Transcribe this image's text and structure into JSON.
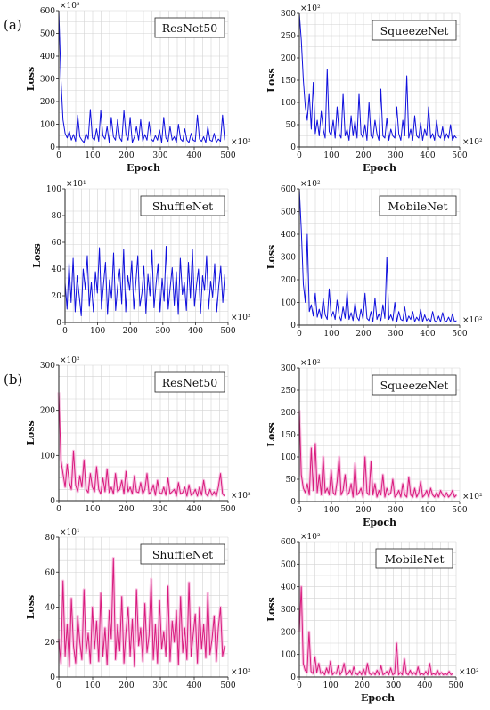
{
  "sections": [
    {
      "label": "(a)"
    },
    {
      "label": "(b)"
    }
  ],
  "colors": {
    "blue": "#1010dd",
    "magenta": "#d81b7d",
    "magenta_glow": "#f6b6dc",
    "grid": "#d3d3d3",
    "axis": "#222222",
    "text": "#111111"
  },
  "chart_data": [
    {
      "id": "a-resnet50",
      "type": "line",
      "title": "ResNet50",
      "xlabel": "Epoch",
      "ylabel": "Loss",
      "y_multiplier": "×10²",
      "x_multiplier": "×10²",
      "xlim": [
        0,
        500
      ],
      "ylim": [
        0,
        600
      ],
      "x_ticks": [
        "0",
        "100",
        "200",
        "300",
        "400",
        "500"
      ],
      "y_ticks": [
        "0",
        "100",
        "200",
        "300",
        "400",
        "500",
        "600"
      ],
      "series": [
        {
          "color": "blue",
          "values": [
            600,
            300,
            120,
            60,
            40,
            70,
            30,
            55,
            25,
            140,
            45,
            30,
            20,
            60,
            35,
            165,
            40,
            30,
            80,
            25,
            160,
            50,
            35,
            90,
            20,
            130,
            45,
            30,
            120,
            40,
            25,
            160,
            55,
            30,
            130,
            20,
            45,
            90,
            30,
            120,
            25,
            55,
            30,
            110,
            35,
            25,
            50,
            30,
            75,
            20,
            130,
            40,
            25,
            90,
            30,
            45,
            20,
            100,
            35,
            25,
            80,
            30,
            20,
            60,
            30,
            25,
            140,
            35,
            25,
            45,
            20,
            90,
            30,
            25,
            60,
            20,
            35,
            25,
            140,
            30
          ]
        }
      ]
    },
    {
      "id": "a-squeezenet",
      "type": "line",
      "title": "SqueezeNet",
      "xlabel": "Epoch",
      "ylabel": "Loss",
      "y_multiplier": "×10²",
      "x_multiplier": "×10²",
      "xlim": [
        0,
        500
      ],
      "ylim": [
        0,
        300
      ],
      "x_ticks": [
        "0",
        "100",
        "200",
        "300",
        "400",
        "500"
      ],
      "y_ticks": [
        "0",
        "50",
        "100",
        "150",
        "200",
        "250",
        "300"
      ],
      "series": [
        {
          "color": "blue",
          "values": [
            300,
            240,
            150,
            90,
            60,
            120,
            40,
            145,
            30,
            60,
            25,
            80,
            40,
            20,
            175,
            35,
            25,
            60,
            20,
            90,
            30,
            20,
            120,
            25,
            40,
            15,
            70,
            25,
            60,
            20,
            120,
            30,
            20,
            50,
            15,
            100,
            25,
            20,
            60,
            30,
            15,
            130,
            25,
            20,
            65,
            15,
            40,
            25,
            20,
            90,
            30,
            15,
            60,
            25,
            160,
            20,
            40,
            15,
            70,
            25,
            20,
            55,
            15,
            40,
            25,
            90,
            20,
            30,
            15,
            60,
            25,
            20,
            45,
            15,
            30,
            20,
            50,
            15,
            25,
            20
          ]
        }
      ]
    },
    {
      "id": "a-shufflenet",
      "type": "line",
      "title": "ShuffleNet",
      "xlabel": "",
      "ylabel": "Loss",
      "y_multiplier": "×10¹",
      "x_multiplier": "×10²",
      "xlim": [
        0,
        500
      ],
      "ylim": [
        0,
        100
      ],
      "x_ticks": [
        "0",
        "100",
        "200",
        "300",
        "400",
        "500"
      ],
      "y_ticks": [
        "0",
        "20",
        "40",
        "60",
        "80",
        "100"
      ],
      "series": [
        {
          "color": "blue",
          "values": [
            30,
            10,
            45,
            15,
            48,
            8,
            35,
            20,
            5,
            40,
            25,
            50,
            12,
            30,
            8,
            38,
            22,
            56,
            10,
            28,
            45,
            6,
            32,
            18,
            52,
            9,
            27,
            40,
            14,
            55,
            8,
            35,
            24,
            46,
            10,
            30,
            50,
            12,
            22,
            42,
            7,
            36,
            20,
            54,
            11,
            29,
            44,
            8,
            33,
            16,
            57,
            10,
            26,
            41,
            13,
            38,
            6,
            48,
            21,
            30,
            9,
            45,
            18,
            55,
            12,
            28,
            40,
            7,
            35,
            24,
            50,
            10,
            31,
            19,
            44,
            8,
            27,
            42,
            15,
            36
          ]
        }
      ]
    },
    {
      "id": "a-mobilenet",
      "type": "line",
      "title": "MobileNet",
      "xlabel": "",
      "ylabel": "Loss",
      "y_multiplier": "×10²",
      "x_multiplier": "×10²",
      "xlim": [
        0,
        500
      ],
      "ylim": [
        0,
        600
      ],
      "x_ticks": [
        "0",
        "100",
        "200",
        "300",
        "400",
        "500"
      ],
      "y_ticks": [
        "0",
        "100",
        "200",
        "300",
        "400",
        "500",
        "600"
      ],
      "series": [
        {
          "color": "blue",
          "values": [
            600,
            420,
            180,
            100,
            400,
            60,
            90,
            40,
            140,
            35,
            70,
            30,
            120,
            45,
            25,
            160,
            35,
            60,
            25,
            110,
            40,
            20,
            80,
            30,
            150,
            25,
            55,
            20,
            100,
            35,
            20,
            70,
            25,
            140,
            30,
            20,
            60,
            15,
            120,
            25,
            50,
            20,
            90,
            30,
            300,
            25,
            45,
            20,
            100,
            15,
            60,
            25,
            20,
            80,
            15,
            40,
            25,
            60,
            15,
            35,
            20,
            70,
            15,
            45,
            20,
            30,
            15,
            60,
            20,
            15,
            40,
            15,
            55,
            20,
            15,
            35,
            15,
            50,
            15,
            20
          ]
        }
      ]
    },
    {
      "id": "b-resnet50",
      "type": "line",
      "title": "ResNet50",
      "xlabel": "",
      "ylabel": "Loss",
      "y_multiplier": "×10²",
      "x_multiplier": "×10²",
      "xlim": [
        0,
        500
      ],
      "ylim": [
        0,
        300
      ],
      "x_ticks": [
        "0",
        "100",
        "200",
        "300",
        "400",
        "500"
      ],
      "y_ticks": [
        "0",
        "100",
        "200",
        "300"
      ],
      "series": [
        {
          "color": "magenta",
          "values": [
            240,
            90,
            60,
            30,
            80,
            40,
            25,
            110,
            35,
            20,
            55,
            30,
            90,
            25,
            18,
            60,
            30,
            20,
            75,
            25,
            15,
            50,
            20,
            70,
            18,
            30,
            15,
            60,
            20,
            25,
            45,
            15,
            65,
            20,
            30,
            15,
            55,
            20,
            18,
            40,
            15,
            25,
            60,
            15,
            20,
            35,
            12,
            45,
            18,
            15,
            30,
            12,
            50,
            15,
            20,
            25,
            10,
            40,
            15,
            18,
            30,
            10,
            35,
            12,
            15,
            25,
            10,
            30,
            12,
            45,
            15,
            10,
            25,
            12,
            20,
            10,
            30,
            60,
            15,
            10
          ]
        }
      ]
    },
    {
      "id": "b-squeezenet",
      "type": "line",
      "title": "SqueezeNet",
      "xlabel": "Epoch",
      "ylabel": "Loss",
      "y_multiplier": "×10²",
      "x_multiplier": "×10²",
      "xlim": [
        0,
        500
      ],
      "ylim": [
        0,
        300
      ],
      "x_ticks": [
        "0",
        "100",
        "200",
        "300",
        "400",
        "500"
      ],
      "y_ticks": [
        "0",
        "50",
        "100",
        "150",
        "200",
        "250",
        "300"
      ],
      "series": [
        {
          "color": "magenta",
          "values": [
            205,
            60,
            30,
            20,
            40,
            15,
            120,
            25,
            130,
            20,
            60,
            15,
            100,
            20,
            30,
            15,
            70,
            20,
            15,
            45,
            100,
            15,
            25,
            60,
            15,
            20,
            40,
            10,
            85,
            15,
            20,
            30,
            10,
            100,
            20,
            15,
            90,
            15,
            40,
            10,
            25,
            15,
            60,
            10,
            30,
            15,
            20,
            50,
            10,
            15,
            25,
            10,
            40,
            15,
            10,
            55,
            15,
            10,
            30,
            10,
            20,
            45,
            10,
            15,
            25,
            10,
            30,
            15,
            10,
            20,
            10,
            25,
            15,
            10,
            20,
            10,
            15,
            25,
            10,
            15
          ]
        }
      ]
    },
    {
      "id": "b-shufflenet",
      "type": "line",
      "title": "ShuffleNet",
      "xlabel": "",
      "ylabel": "Loss",
      "y_multiplier": "×10¹",
      "x_multiplier": "×10²",
      "xlim": [
        0,
        500
      ],
      "ylim": [
        0,
        80
      ],
      "x_ticks": [
        "0",
        "100",
        "200",
        "300",
        "400",
        "500"
      ],
      "y_ticks": [
        "0",
        "20",
        "40",
        "60",
        "80"
      ],
      "series": [
        {
          "color": "magenta",
          "values": [
            22,
            8,
            55,
            12,
            30,
            6,
            45,
            18,
            8,
            35,
            20,
            10,
            50,
            14,
            25,
            8,
            40,
            16,
            32,
            9,
            48,
            12,
            28,
            7,
            38,
            22,
            68,
            10,
            30,
            15,
            46,
            8,
            26,
            40,
            12,
            33,
            6,
            50,
            18,
            28,
            9,
            42,
            14,
            24,
            56,
            10,
            30,
            8,
            44,
            16,
            26,
            12,
            52,
            9,
            32,
            20,
            38,
            7,
            46,
            14,
            28,
            10,
            54,
            12,
            24,
            36,
            8,
            40,
            16,
            30,
            11,
            48,
            13,
            22,
            35,
            9,
            28,
            40,
            12,
            18
          ]
        }
      ]
    },
    {
      "id": "b-mobilenet",
      "type": "line",
      "title": "MobileNet",
      "xlabel": "Epoch",
      "ylabel": "Loss",
      "y_multiplier": "×10²",
      "x_multiplier": "×10²",
      "xlim": [
        0,
        500
      ],
      "ylim": [
        0,
        600
      ],
      "x_ticks": [
        "0",
        "100",
        "200",
        "300",
        "400",
        "500"
      ],
      "y_ticks": [
        "0",
        "100",
        "200",
        "300",
        "400",
        "500",
        "600"
      ],
      "series": [
        {
          "color": "magenta",
          "values": [
            200,
            400,
            60,
            30,
            20,
            200,
            25,
            15,
            90,
            20,
            60,
            15,
            25,
            10,
            40,
            15,
            70,
            10,
            20,
            15,
            50,
            10,
            25,
            60,
            10,
            15,
            30,
            10,
            45,
            15,
            10,
            25,
            10,
            35,
            10,
            60,
            15,
            10,
            20,
            10,
            30,
            10,
            50,
            10,
            15,
            25,
            10,
            40,
            10,
            15,
            150,
            10,
            20,
            10,
            80,
            15,
            10,
            30,
            10,
            20,
            10,
            45,
            10,
            15,
            10,
            25,
            10,
            60,
            10,
            15,
            10,
            30,
            10,
            20,
            10,
            15,
            10,
            25,
            10,
            15
          ]
        }
      ]
    }
  ]
}
